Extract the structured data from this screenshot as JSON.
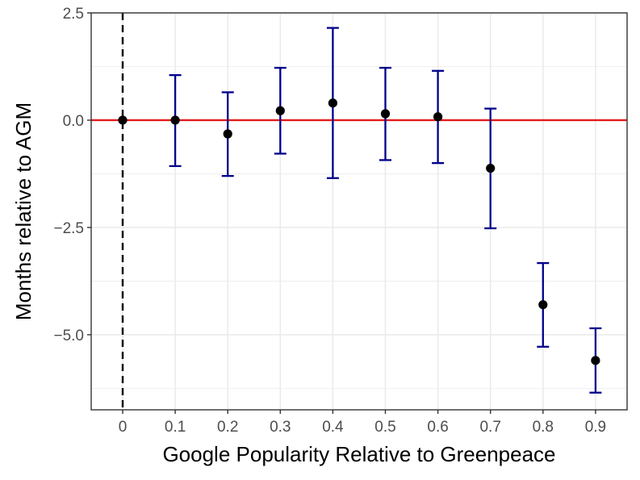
{
  "chart_data": {
    "type": "scatter",
    "title": "",
    "xlabel": "Google Popularity Relative to Greenpeace",
    "ylabel": "Months relative to AGM",
    "categories": [
      "0",
      "0.1",
      "0.2",
      "0.3",
      "0.4",
      "0.5",
      "0.6",
      "0.7",
      "0.8",
      "0.9"
    ],
    "y_ticks": [
      -5.0,
      -2.5,
      0.0,
      2.5
    ],
    "y_tick_labels": [
      "−5.0",
      "−2.5",
      "0.0",
      "2.5"
    ],
    "ylim": [
      -6.75,
      2.5
    ],
    "grid": true,
    "legend": "none",
    "reference_line_y": 0,
    "reference_line_x_category": "0",
    "series": [
      {
        "estimate": [
          0.0,
          0.0,
          -0.32,
          0.22,
          0.4,
          0.15,
          0.08,
          -1.12,
          -4.3,
          -5.6
        ],
        "ci_low": [
          null,
          -1.07,
          -1.3,
          -0.78,
          -1.35,
          -0.93,
          -1.0,
          -2.52,
          -5.28,
          -6.35
        ],
        "ci_high": [
          null,
          1.05,
          0.65,
          1.22,
          2.15,
          1.22,
          1.15,
          0.27,
          -3.33,
          -4.85
        ]
      }
    ],
    "colors": {
      "point": "#000000",
      "errorbar": "#00008b",
      "reference_line": "#e41a1c",
      "vertical_dashed": "#000000",
      "grid": "#ebebeb",
      "panel_border": "#333333"
    }
  }
}
